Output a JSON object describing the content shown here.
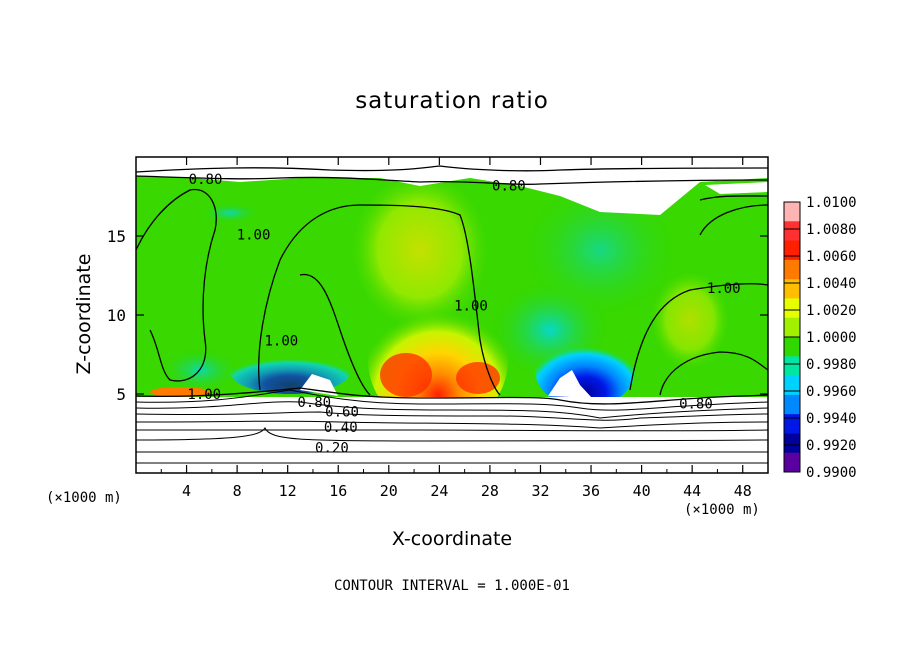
{
  "chart_data": {
    "type": "heatmap",
    "title": "saturation ratio",
    "xlabel": "X-coordinate",
    "ylabel": "Z-coordinate",
    "x_units": "(×1000 m)",
    "x_units_repeat": "(×1000 m)",
    "footer": "CONTOUR INTERVAL = 1.000E-01",
    "xlim": [
      0,
      50
    ],
    "ylim": [
      0,
      20
    ],
    "x_ticks": [
      "4",
      "8",
      "12",
      "16",
      "20",
      "24",
      "28",
      "32",
      "36",
      "40",
      "44",
      "48"
    ],
    "y_ticks": [
      "5",
      "10",
      "15"
    ],
    "colorbar": {
      "ticks": [
        "1.0100",
        "1.0080",
        "1.0060",
        "1.0040",
        "1.0020",
        "1.0000",
        "0.9980",
        "0.9960",
        "0.9940",
        "0.9920",
        "0.9900"
      ],
      "colors": [
        "#ffb4b4",
        "#ff3030",
        "#ff2000",
        "#ff7a00",
        "#ffbe00",
        "#e6ff00",
        "#a0f000",
        "#30d800",
        "#00e6a0",
        "#00d2ff",
        "#0088ff",
        "#0018e6",
        "#00009a",
        "#5a00a0"
      ]
    },
    "contour_labels": [
      {
        "text": "0.80",
        "x": 5.5,
        "y": 18.6
      },
      {
        "text": "0.80",
        "x": 29.5,
        "y": 18.2
      },
      {
        "text": "1.00",
        "x": 9.3,
        "y": 15.1
      },
      {
        "text": "1.00",
        "x": 26.5,
        "y": 10.6
      },
      {
        "text": "1.00",
        "x": 11.5,
        "y": 8.4
      },
      {
        "text": "1.00",
        "x": 46.5,
        "y": 11.7
      },
      {
        "text": "1.00",
        "x": 5.4,
        "y": 5.0
      },
      {
        "text": "0.80",
        "x": 14.1,
        "y": 4.5
      },
      {
        "text": "0.60",
        "x": 16.3,
        "y": 3.9
      },
      {
        "text": "0.40",
        "x": 16.2,
        "y": 2.9
      },
      {
        "text": "0.20",
        "x": 15.5,
        "y": 1.6
      },
      {
        "text": "0.80",
        "x": 44.3,
        "y": 4.4
      }
    ],
    "colors": {
      "frame": "#000000",
      "background": "#ffffff"
    }
  }
}
